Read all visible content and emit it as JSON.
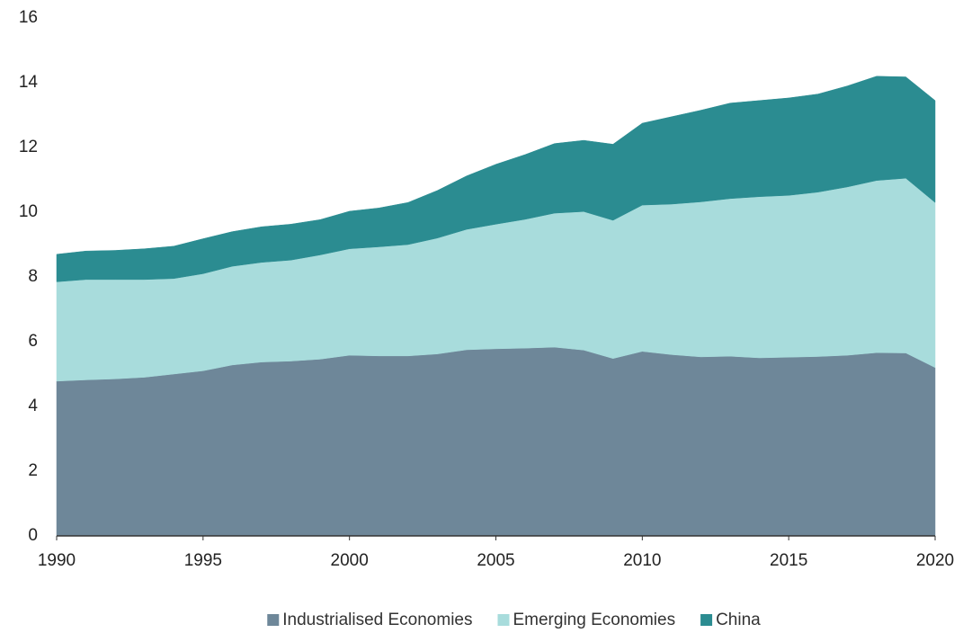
{
  "chart_data": {
    "type": "stacked_area",
    "x": [
      1990,
      1991,
      1992,
      1993,
      1994,
      1995,
      1996,
      1997,
      1998,
      1999,
      2000,
      2001,
      2002,
      2003,
      2004,
      2005,
      2006,
      2007,
      2008,
      2009,
      2010,
      2011,
      2012,
      2013,
      2014,
      2015,
      2016,
      2017,
      2018,
      2019,
      2020
    ],
    "series": [
      {
        "name": "Industrialised Economies",
        "color": "#6e8799",
        "values": [
          4.78,
          4.82,
          4.85,
          4.9,
          5.0,
          5.1,
          5.28,
          5.37,
          5.4,
          5.46,
          5.58,
          5.56,
          5.56,
          5.62,
          5.75,
          5.78,
          5.8,
          5.83,
          5.74,
          5.48,
          5.7,
          5.6,
          5.53,
          5.55,
          5.5,
          5.52,
          5.54,
          5.58,
          5.66,
          5.65,
          5.2
        ]
      },
      {
        "name": "Emerging Economies",
        "color": "#a8dcdc",
        "values": [
          3.07,
          3.1,
          3.07,
          3.02,
          2.95,
          3.0,
          3.05,
          3.08,
          3.12,
          3.22,
          3.29,
          3.37,
          3.44,
          3.58,
          3.72,
          3.85,
          3.98,
          4.14,
          4.28,
          4.27,
          4.52,
          4.65,
          4.79,
          4.87,
          4.98,
          5.0,
          5.08,
          5.2,
          5.32,
          5.4,
          5.1
        ]
      },
      {
        "name": "China",
        "color": "#2b8c91",
        "values": [
          0.85,
          0.88,
          0.9,
          0.95,
          1.0,
          1.08,
          1.07,
          1.1,
          1.11,
          1.09,
          1.16,
          1.2,
          1.3,
          1.47,
          1.65,
          1.85,
          2.0,
          2.15,
          2.2,
          2.35,
          2.53,
          2.7,
          2.83,
          2.95,
          2.97,
          3.01,
          3.03,
          3.12,
          3.22,
          3.13,
          3.15
        ]
      }
    ],
    "xlim": [
      1990,
      2020
    ],
    "xticks": [
      1990,
      1995,
      2000,
      2005,
      2010,
      2015,
      2020
    ],
    "ylim": [
      0,
      16
    ],
    "yticks": [
      0,
      2,
      4,
      6,
      8,
      10,
      12,
      14,
      16
    ],
    "grid": false,
    "legend": "bottom"
  }
}
